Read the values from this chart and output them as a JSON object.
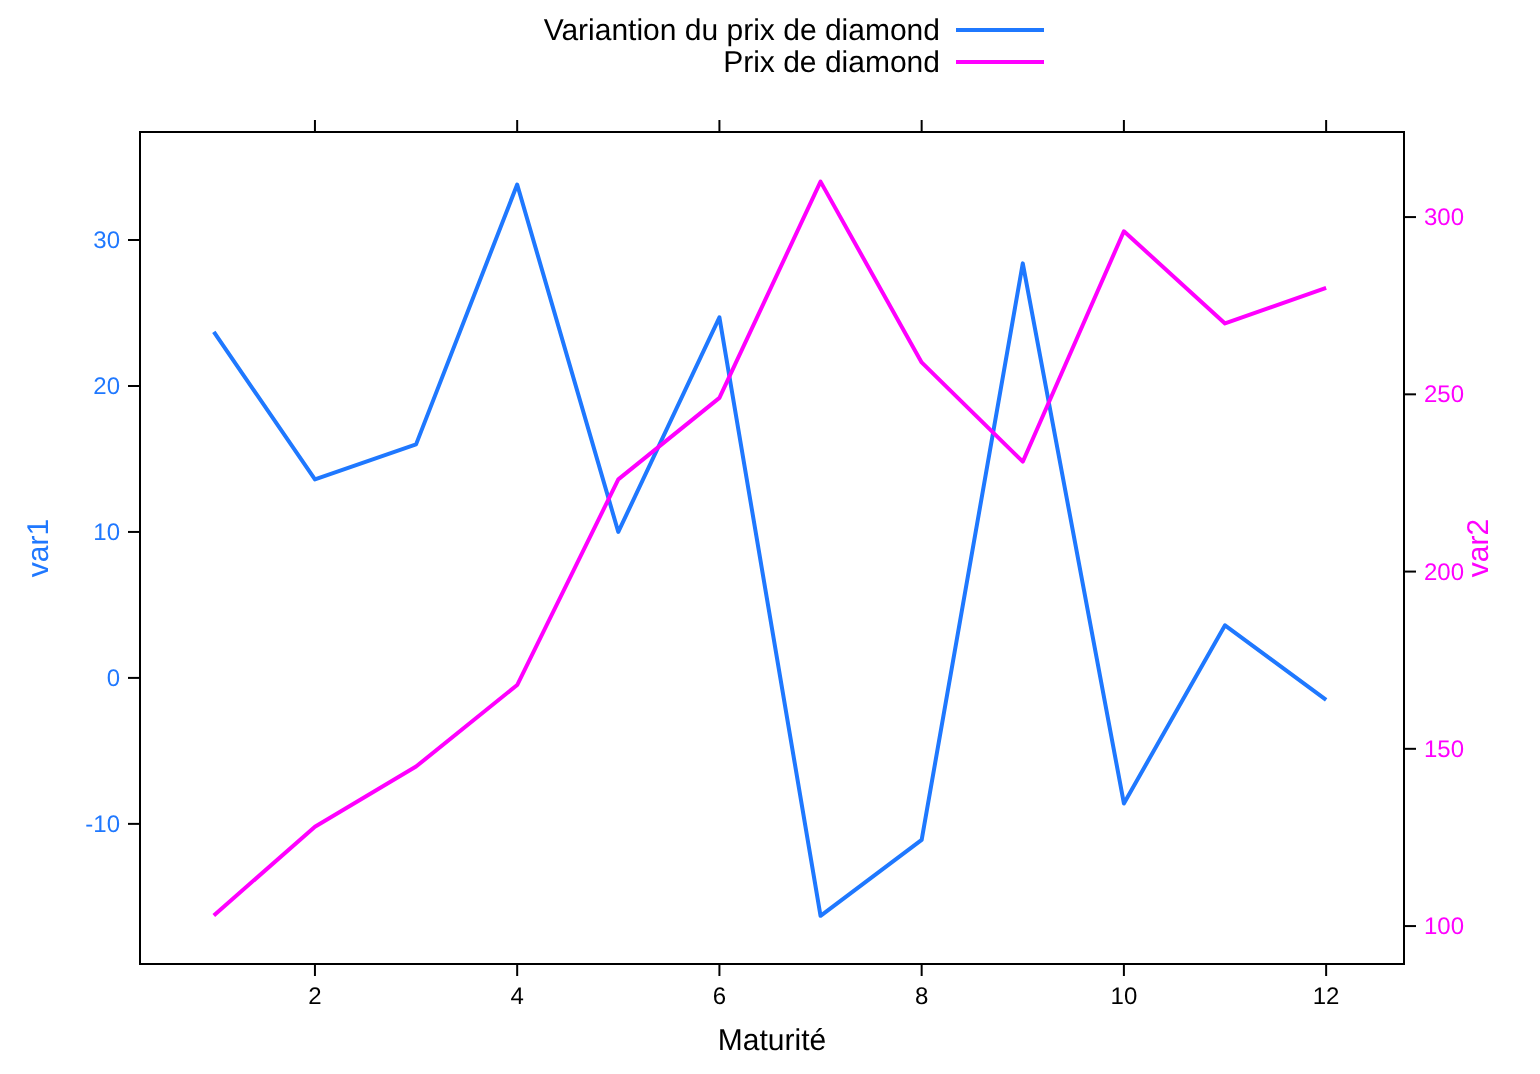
{
  "chart_data": {
    "type": "line",
    "xlabel": "Maturité",
    "ylabel": "var1",
    "y2label": "var2",
    "x": [
      1,
      2,
      3,
      4,
      5,
      6,
      7,
      8,
      9,
      10,
      11,
      12
    ],
    "xlim": [
      0.27,
      12.77
    ],
    "xticks": [
      2,
      4,
      6,
      8,
      10,
      12
    ],
    "ylim": [
      -19.6,
      37.4
    ],
    "yticks": [
      -10,
      0,
      10,
      20,
      30
    ],
    "y2lim": [
      89.3,
      324
    ],
    "y2ticks": [
      100,
      150,
      200,
      250,
      300
    ],
    "legend": "top",
    "grid": false,
    "series": [
      {
        "name": "Variantion du prix de diamond",
        "color": "#1f78ff",
        "values": [
          23.7,
          13.6,
          16.0,
          33.8,
          10.0,
          24.7,
          -16.3,
          -11.1,
          28.4,
          -8.6,
          3.6,
          -1.5
        ]
      },
      {
        "name": "Prix de diamond",
        "color": "#ff00ff",
        "axis": "y2",
        "values": [
          103,
          128,
          145,
          168,
          226,
          249,
          310,
          259,
          231,
          296,
          270,
          280
        ]
      }
    ]
  }
}
